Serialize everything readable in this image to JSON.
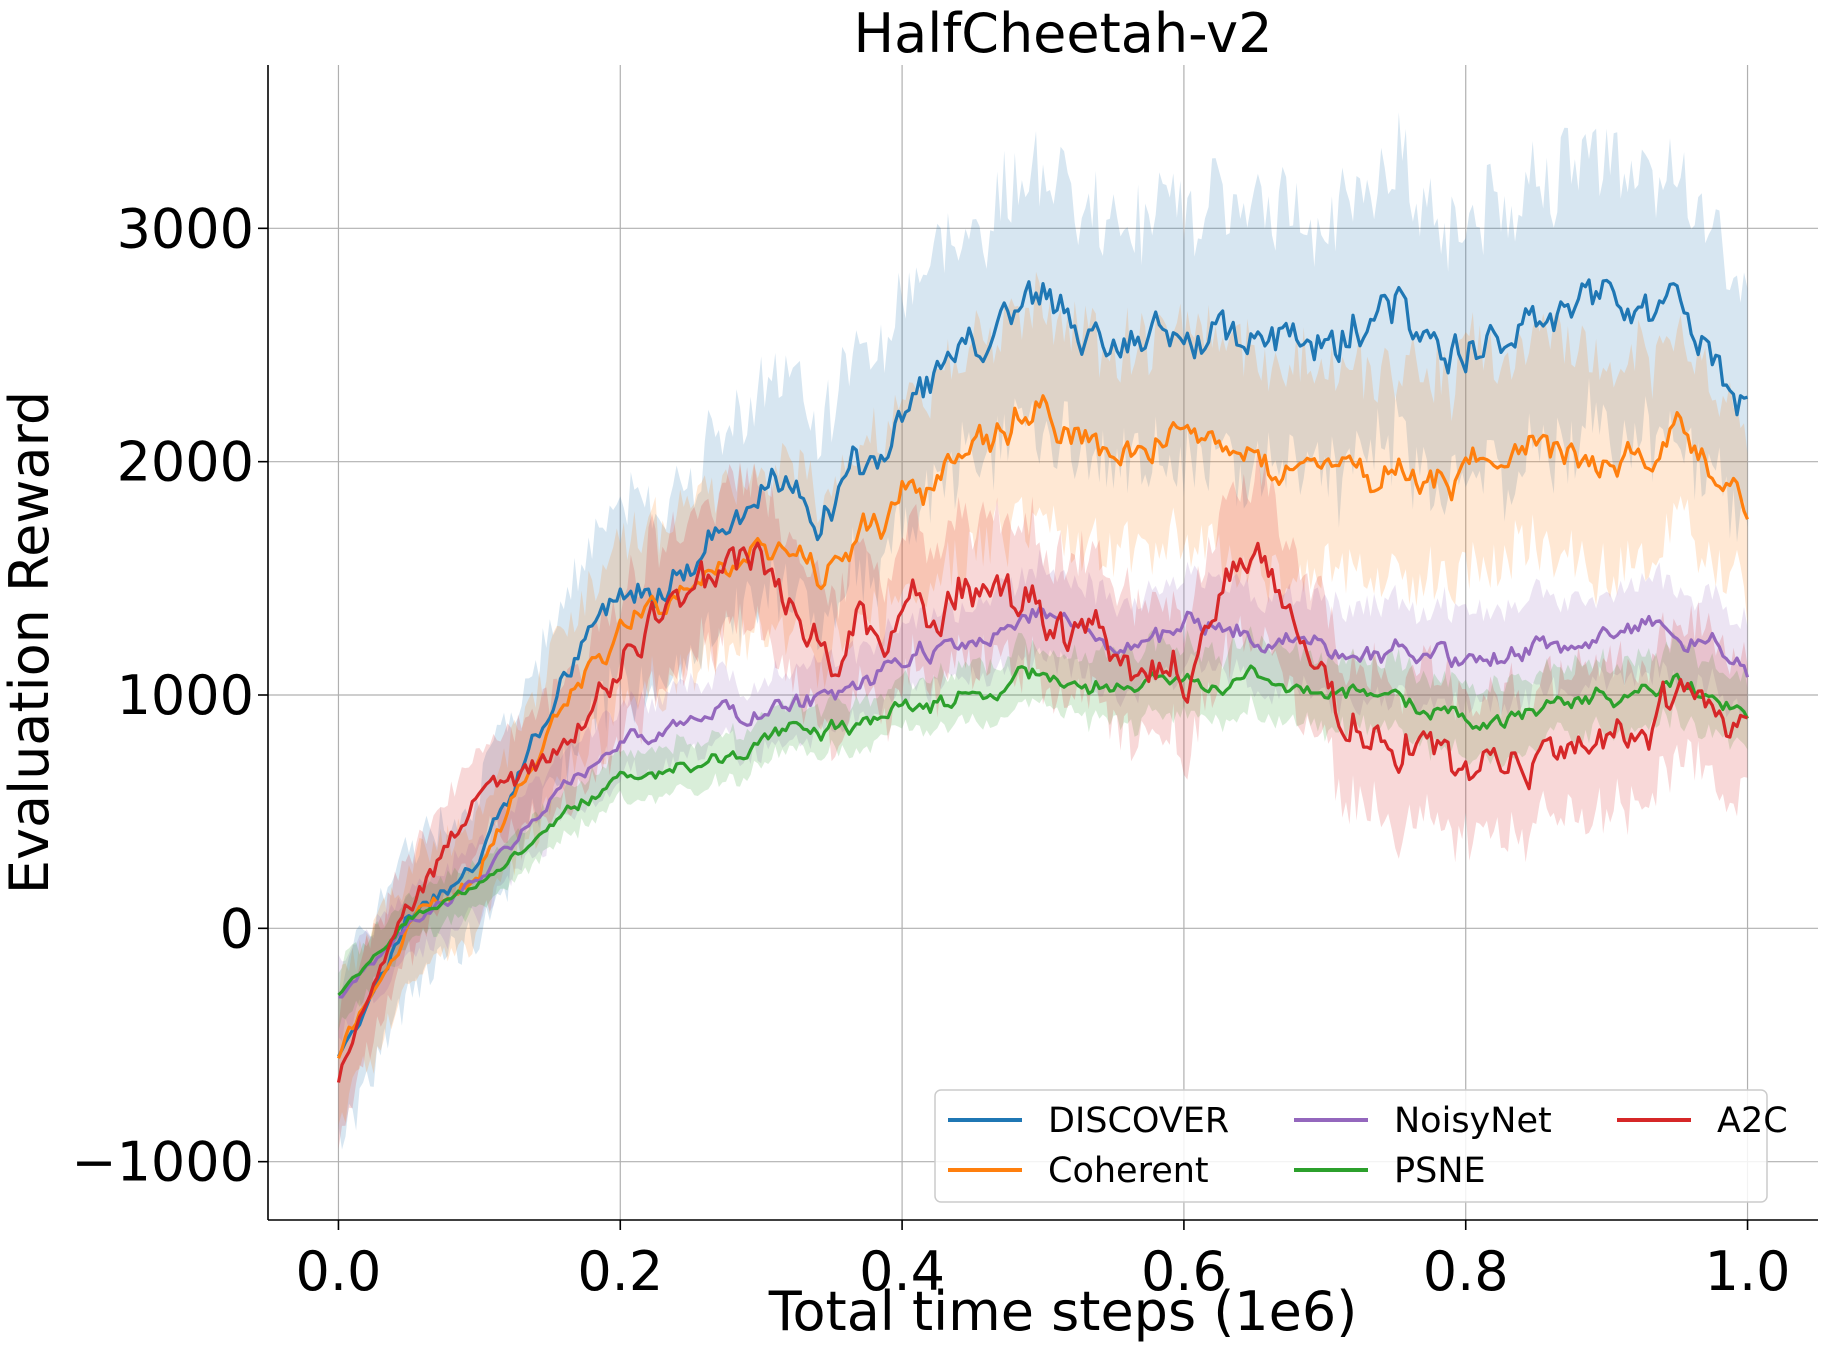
{
  "chart_data": {
    "type": "line",
    "title": "HalfCheetah-v2",
    "xlabel": "Total time steps (1e6)",
    "ylabel": "Evaluation Reward",
    "xlim": [
      -0.05,
      1.05
    ],
    "ylim": [
      -1250,
      3700
    ],
    "xticks": [
      0.0,
      0.2,
      0.4,
      0.6,
      0.8,
      1.0
    ],
    "xtick_labels": [
      "0.0",
      "0.2",
      "0.4",
      "0.6",
      "0.8",
      "1.0"
    ],
    "yticks": [
      -1000,
      0,
      1000,
      2000,
      3000
    ],
    "ytick_labels": [
      "−1000",
      "0",
      "1000",
      "2000",
      "3000"
    ],
    "grid": true,
    "legend_position": "lower-right",
    "legend_columns": 3,
    "x": [
      0.0,
      0.05,
      0.1,
      0.15,
      0.2,
      0.25,
      0.3,
      0.35,
      0.4,
      0.45,
      0.5,
      0.55,
      0.6,
      0.65,
      0.7,
      0.75,
      0.8,
      0.85,
      0.9,
      0.95,
      1.0
    ],
    "series": [
      {
        "name": "DISCOVER",
        "color": "#1f77b4",
        "values": [
          -550,
          50,
          300,
          950,
          1450,
          1550,
          1900,
          1800,
          2200,
          2500,
          2700,
          2450,
          2600,
          2550,
          2500,
          2700,
          2450,
          2650,
          2700,
          2650,
          2200
        ],
        "band": [
          350,
          300,
          300,
          350,
          400,
          400,
          450,
          450,
          500,
          500,
          550,
          500,
          550,
          550,
          550,
          600,
          550,
          600,
          600,
          550,
          500
        ]
      },
      {
        "name": "Coherent",
        "color": "#ff7f0e",
        "values": [
          -550,
          30,
          250,
          850,
          1300,
          1450,
          1600,
          1550,
          1850,
          2050,
          2250,
          2000,
          2150,
          1950,
          2000,
          1950,
          1950,
          2050,
          2050,
          2100,
          1750
        ],
        "band": [
          300,
          250,
          250,
          300,
          350,
          350,
          350,
          350,
          400,
          450,
          450,
          450,
          450,
          450,
          450,
          450,
          450,
          450,
          450,
          400,
          350
        ]
      },
      {
        "name": "NoisyNet",
        "color": "#9467bd",
        "values": [
          -300,
          20,
          200,
          550,
          800,
          900,
          950,
          1000,
          1150,
          1250,
          1350,
          1200,
          1300,
          1250,
          1200,
          1200,
          1150,
          1200,
          1250,
          1300,
          1100
        ],
        "band": [
          150,
          150,
          150,
          150,
          150,
          150,
          150,
          150,
          150,
          150,
          200,
          200,
          200,
          200,
          200,
          200,
          200,
          200,
          200,
          200,
          200
        ]
      },
      {
        "name": "PSNE",
        "color": "#2ca02c",
        "values": [
          -280,
          40,
          180,
          450,
          650,
          700,
          800,
          850,
          950,
          1000,
          1100,
          1000,
          1050,
          1100,
          1000,
          1000,
          900,
          950,
          1000,
          1050,
          900
        ],
        "band": [
          120,
          100,
          100,
          100,
          100,
          100,
          100,
          100,
          100,
          120,
          120,
          150,
          150,
          150,
          150,
          150,
          150,
          150,
          150,
          150,
          150
        ]
      },
      {
        "name": "A2C",
        "color": "#d62728",
        "values": [
          -650,
          100,
          550,
          750,
          1150,
          1450,
          1550,
          1150,
          1350,
          1450,
          1350,
          1200,
          1050,
          1650,
          950,
          800,
          700,
          650,
          850,
          950,
          850
        ],
        "band": [
          250,
          200,
          200,
          250,
          300,
          300,
          300,
          300,
          300,
          300,
          300,
          300,
          300,
          350,
          300,
          300,
          300,
          300,
          300,
          300,
          300
        ]
      }
    ]
  }
}
